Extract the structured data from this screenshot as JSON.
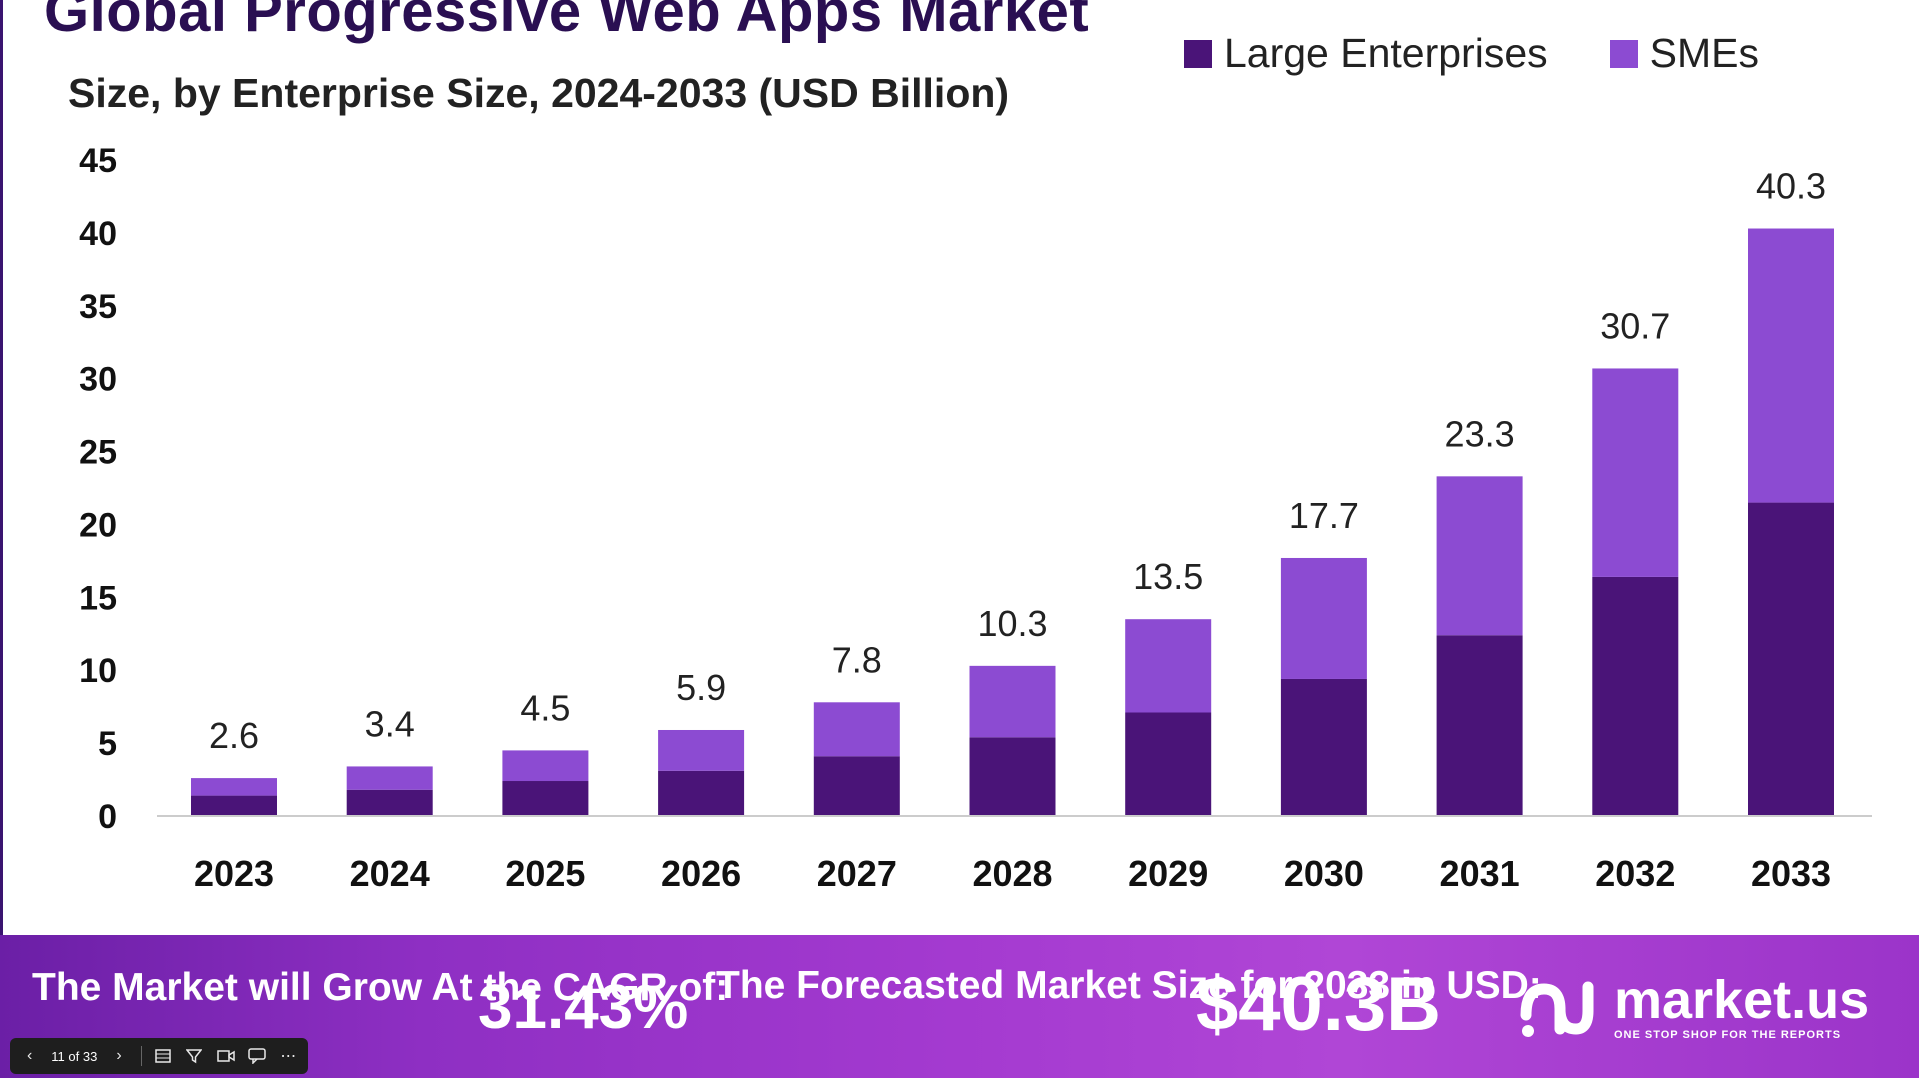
{
  "header": {
    "title": "Global Progressive Web Apps Market",
    "subtitle": "Size, by Enterprise Size, 2024-2033 (USD Billion)"
  },
  "legend": [
    {
      "label": "Large Enterprises",
      "color": "#4a1478"
    },
    {
      "label": "SMEs",
      "color": "#8c4bd2"
    }
  ],
  "chart_data": {
    "type": "bar",
    "stacked": true,
    "title": "Global Progressive Web Apps Market",
    "subtitle": "Size, by Enterprise Size, 2024-2033 (USD Billion)",
    "categories": [
      "2023",
      "2024",
      "2025",
      "2026",
      "2027",
      "2028",
      "2029",
      "2030",
      "2031",
      "2032",
      "2033"
    ],
    "series": [
      {
        "name": "Large Enterprises",
        "color": "#4a1478",
        "values": [
          1.4,
          1.8,
          2.4,
          3.1,
          4.1,
          5.4,
          7.1,
          9.4,
          12.4,
          16.4,
          21.5
        ]
      },
      {
        "name": "SMEs",
        "color": "#8c4bd2",
        "values": [
          1.2,
          1.6,
          2.1,
          2.8,
          3.7,
          4.9,
          6.4,
          8.3,
          10.9,
          14.3,
          18.8
        ]
      }
    ],
    "totals": [
      "2.6",
      "3.4",
      "4.5",
      "5.9",
      "7.8",
      "10.3",
      "13.5",
      "17.7",
      "23.3",
      "30.7",
      "40.3"
    ],
    "yticks": [
      "0",
      "5",
      "10",
      "15",
      "20",
      "25",
      "30",
      "35",
      "40",
      "45"
    ],
    "ylim": [
      0,
      45
    ],
    "grid": false,
    "legend_position": "top-right"
  },
  "footer": {
    "growth_label": "The Market will Grow At the CAGR of:",
    "cagr": "31.43%",
    "forecast_label": "The Forecasted Market Size for 2033 in USD:",
    "forecast_value": "$40.3B",
    "logo_name": "market.us",
    "logo_tagline": "ONE STOP SHOP FOR THE REPORTS"
  },
  "viewer": {
    "page_count": "11 of 33",
    "icons": [
      "chevron-left-icon",
      "chevron-right-icon",
      "grid-view-icon",
      "filter-icon",
      "video-icon",
      "comment-icon",
      "more-icon"
    ]
  }
}
